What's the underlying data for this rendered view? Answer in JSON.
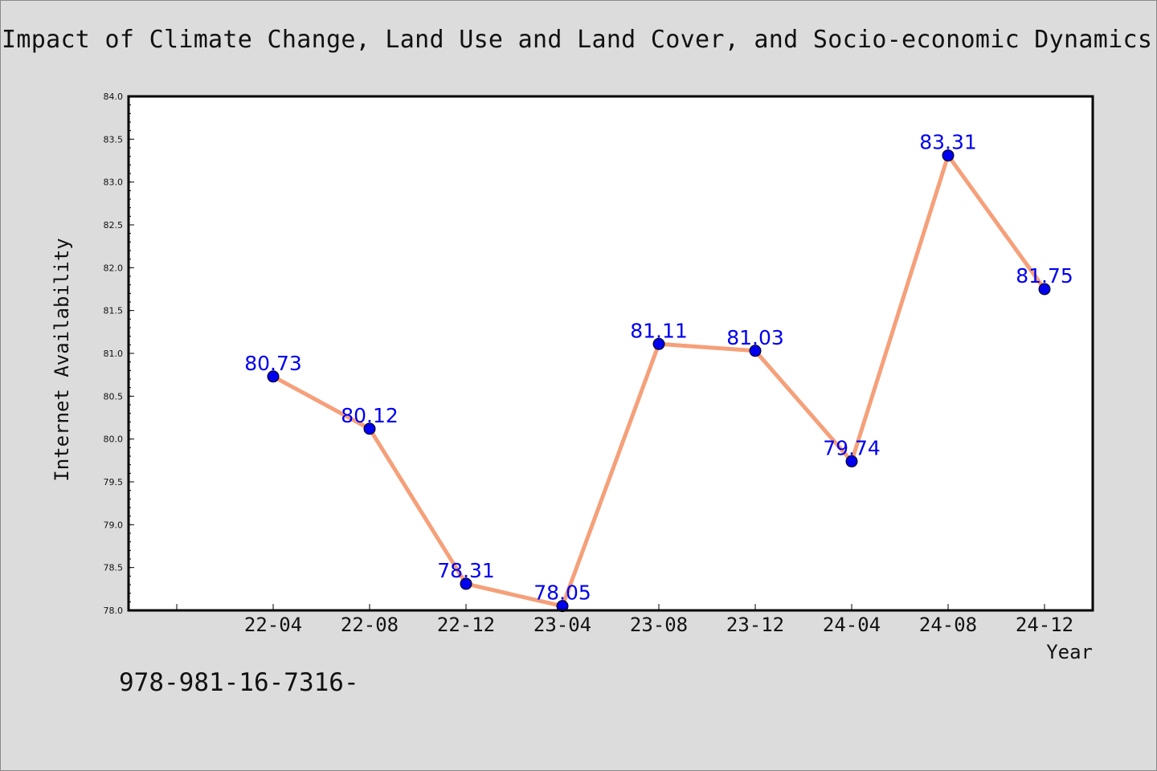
{
  "header": {
    "title": "Impact of Climate Change, Land Use and Land Cover, and Socio-economic Dynamics o"
  },
  "footer": {
    "text": "978-981-16-7316-"
  },
  "colors": {
    "background": "#dcdcdc",
    "plot_background": "#ffffff",
    "line": "#f5a07a",
    "marker": "#0000ee",
    "data_label": "#0000ee"
  },
  "chart_data": {
    "type": "line",
    "title": "",
    "xlabel": "Year",
    "ylabel": "Internet Availability",
    "categories": [
      "22-04",
      "22-08",
      "22-12",
      "23-04",
      "23-08",
      "23-12",
      "24-04",
      "24-08",
      "24-12"
    ],
    "series": [
      {
        "values": [
          80.73,
          80.12,
          78.31,
          78.05,
          81.11,
          81.03,
          79.74,
          83.31,
          81.75
        ]
      }
    ],
    "data_labels": [
      "80.73",
      "80.12",
      "78.31",
      "78.05",
      "81.11",
      "81.03",
      "79.74",
      "83.31",
      "81.75"
    ],
    "ylim": [
      78.0,
      84.0
    ],
    "yticks": [
      "78.0",
      "78.5",
      "79.0",
      "79.5",
      "80.0",
      "80.5",
      "81.0",
      "81.5",
      "82.0",
      "82.5",
      "83.0",
      "83.5",
      "84.0"
    ],
    "grid": false,
    "legend": "none"
  }
}
